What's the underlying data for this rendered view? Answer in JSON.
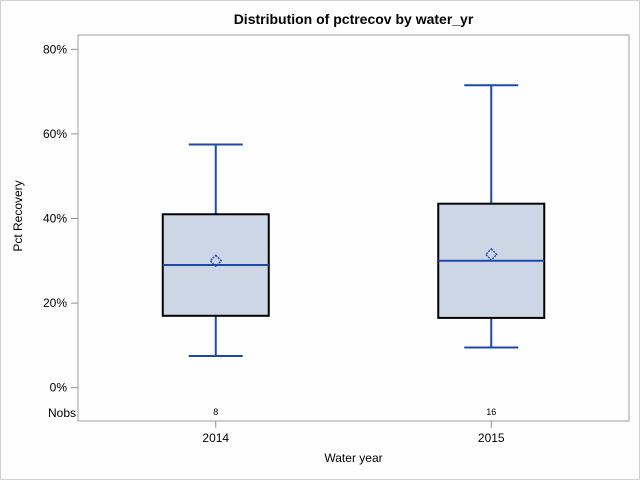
{
  "window": {
    "background": "#fefefe",
    "border_color": "#d2d2d2"
  },
  "colors": {
    "box_fill": "#ccd6e4",
    "box_edge": "#000000",
    "line_blue": "#1d49ac",
    "frame_gray": "#9aa0a6",
    "tick_gray": "#8d9399",
    "text": "#000000"
  },
  "chart_data": {
    "type": "boxplot",
    "title": "Distribution of pctrecov by water_yr",
    "xlabel": "Water year",
    "ylabel": "Pct Recovery",
    "ylim": [
      0,
      80
    ],
    "grid": "off",
    "legend": "none",
    "yticks": [
      {
        "value": 0,
        "label": "0%"
      },
      {
        "value": 20,
        "label": "20%"
      },
      {
        "value": 40,
        "label": "40%"
      },
      {
        "value": 60,
        "label": "60%"
      },
      {
        "value": 80,
        "label": "80%"
      }
    ],
    "nobs_label": "Nobs",
    "categories": [
      "2014",
      "2015"
    ],
    "series": [
      {
        "category": "2014",
        "nobs": "8",
        "whisker_low": 7.5,
        "q1": 17,
        "median": 29,
        "mean": 30,
        "q3": 41,
        "whisker_high": 57.5
      },
      {
        "category": "2015",
        "nobs": "16",
        "whisker_low": 9.5,
        "q1": 16.5,
        "median": 30,
        "mean": 31.5,
        "q3": 43.5,
        "whisker_high": 71.5
      }
    ]
  }
}
